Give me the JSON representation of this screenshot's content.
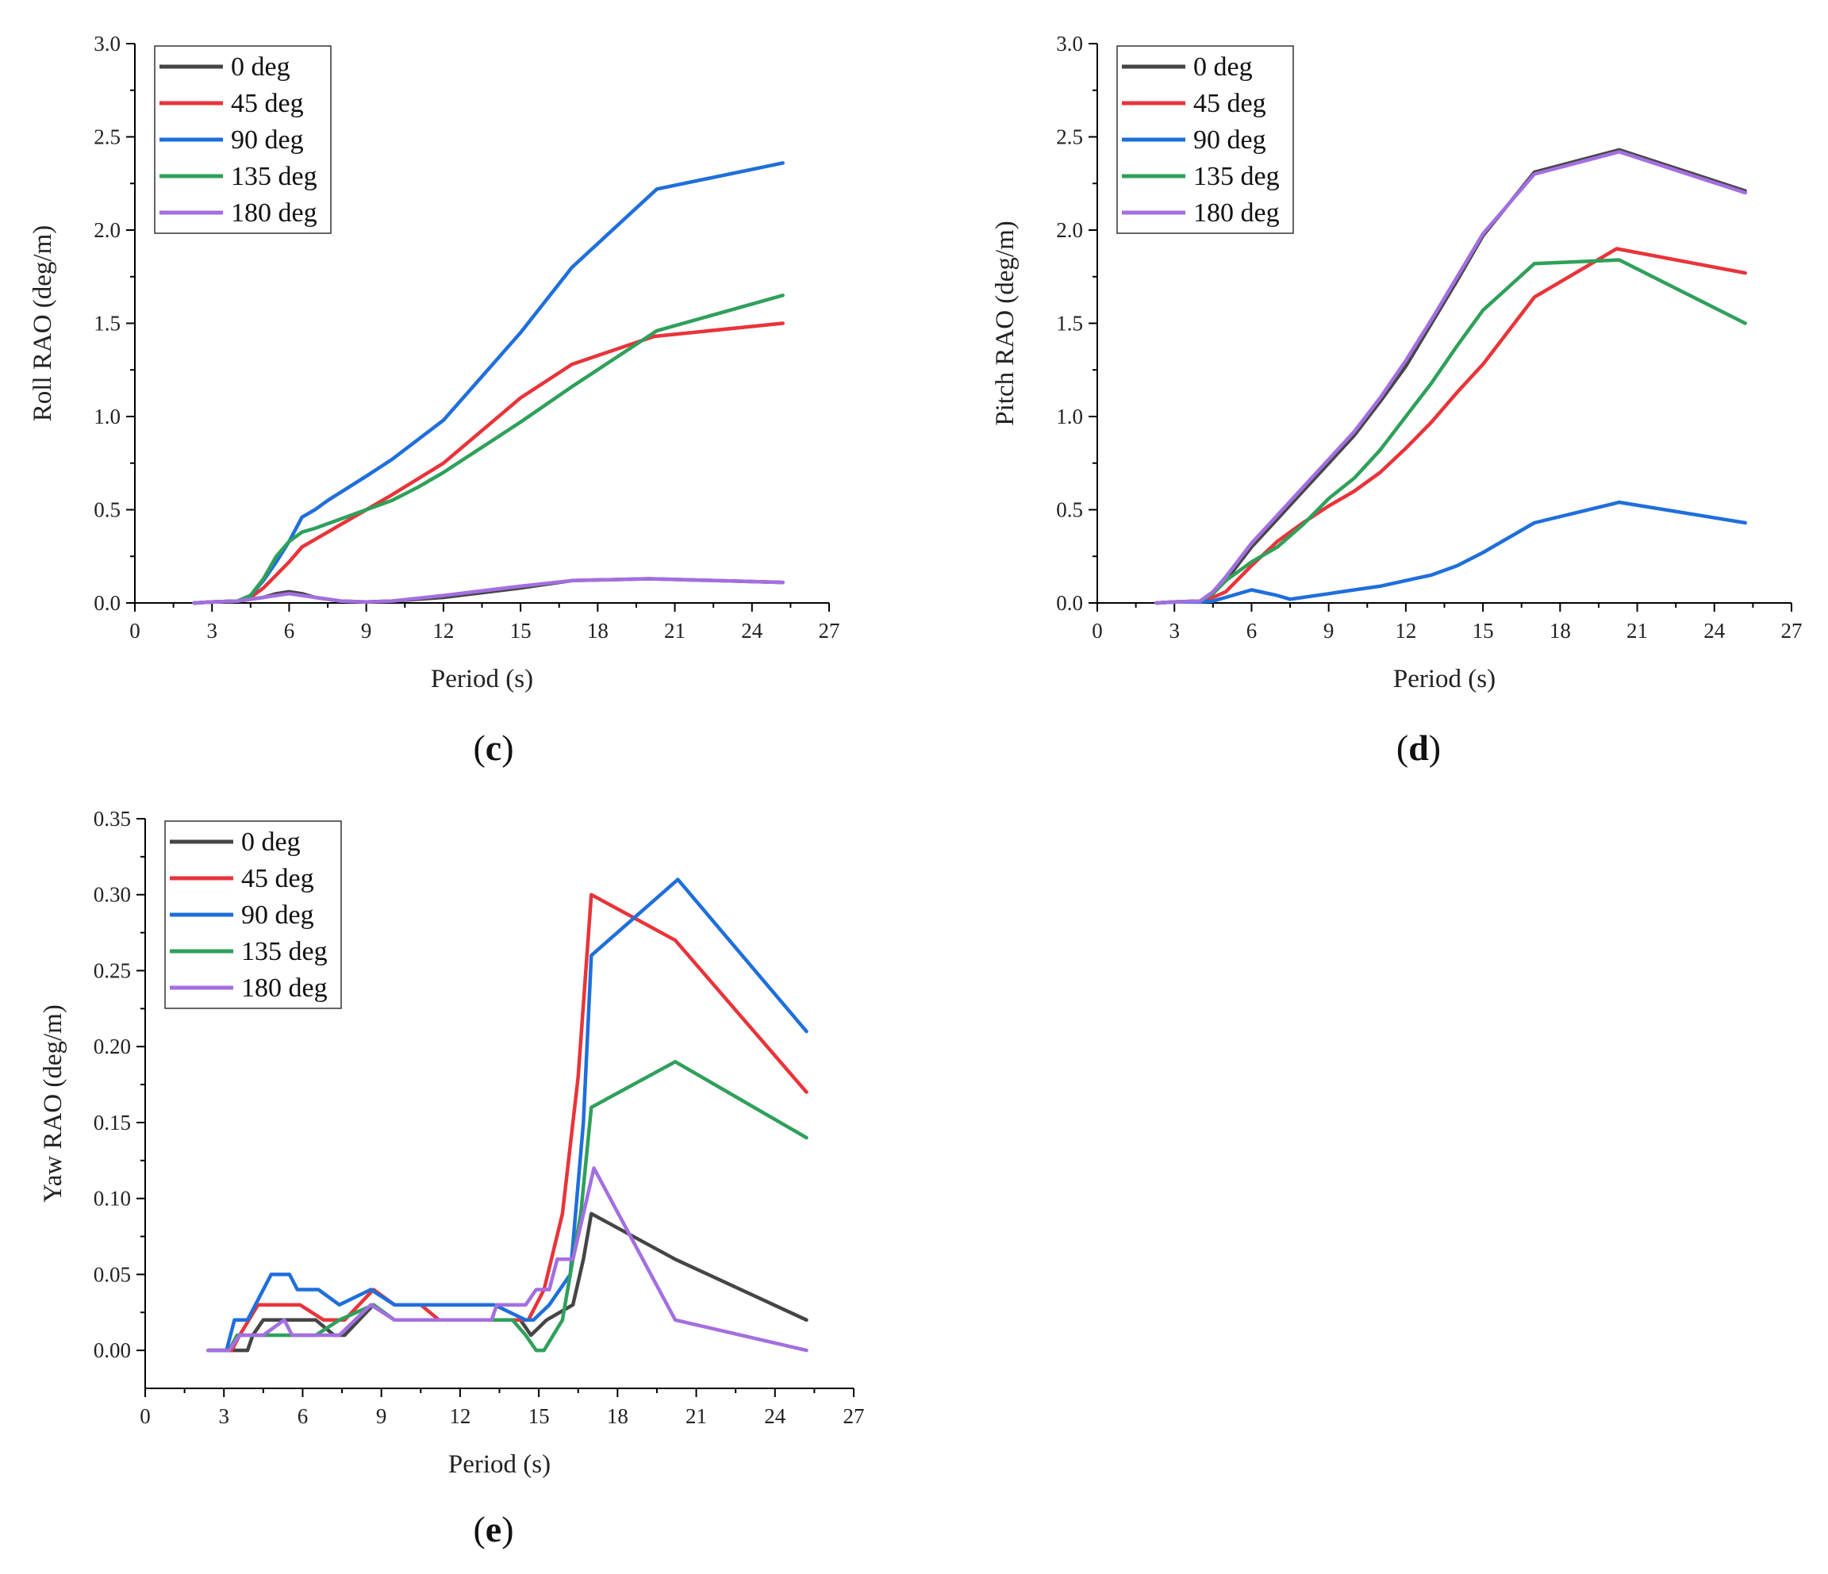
{
  "colors": {
    "0 deg": "#454545",
    "45 deg": "#e8343a",
    "90 deg": "#1f6fdb",
    "135 deg": "#2fa05a",
    "180 deg": "#a36fe0"
  },
  "chart_data": [
    {
      "id": "c",
      "panel_label": "c",
      "type": "line",
      "title": "",
      "xlabel": "Period (s)",
      "ylabel": "Roll RAO (deg/m)",
      "xlim": [
        0,
        27
      ],
      "ylim": [
        0,
        3.0
      ],
      "xticks": [
        "0",
        "3",
        "6",
        "9",
        "12",
        "15",
        "18",
        "21",
        "24",
        "27"
      ],
      "yticks": [
        "0.0",
        "0.5",
        "1.0",
        "1.5",
        "2.0",
        "2.5",
        "3.0"
      ],
      "legend": [
        "0 deg",
        "45 deg",
        "90 deg",
        "135 deg",
        "180 deg"
      ],
      "legend_position": "top-left",
      "series": [
        {
          "name": "0 deg",
          "x": [
            2.3,
            3,
            4,
            4.5,
            5,
            5.5,
            6,
            6.5,
            7,
            8,
            9,
            10,
            12,
            15,
            17,
            20,
            25.2
          ],
          "y": [
            0,
            0.005,
            0.01,
            0.02,
            0.03,
            0.05,
            0.06,
            0.05,
            0.03,
            0.01,
            0.005,
            0.01,
            0.03,
            0.08,
            0.12,
            0.13,
            0.11
          ]
        },
        {
          "name": "45 deg",
          "x": [
            2.3,
            3,
            4,
            4.5,
            5,
            5.5,
            6,
            6.5,
            7,
            7.5,
            9,
            10,
            12,
            15,
            17,
            20.2,
            25.2
          ],
          "y": [
            0,
            0.005,
            0.01,
            0.03,
            0.08,
            0.15,
            0.22,
            0.3,
            0.34,
            0.38,
            0.5,
            0.58,
            0.75,
            1.1,
            1.28,
            1.43,
            1.5
          ]
        },
        {
          "name": "90 deg",
          "x": [
            2.3,
            3,
            4,
            4.5,
            5,
            5.5,
            6,
            6.5,
            7,
            7.5,
            9,
            10,
            12,
            15,
            17,
            20.3,
            25.2
          ],
          "y": [
            0,
            0.005,
            0.01,
            0.04,
            0.12,
            0.22,
            0.33,
            0.46,
            0.5,
            0.55,
            0.68,
            0.77,
            0.98,
            1.45,
            1.8,
            2.22,
            2.36
          ]
        },
        {
          "name": "135 deg",
          "x": [
            2.3,
            3,
            4,
            4.5,
            5,
            5.5,
            6,
            6.5,
            7,
            8,
            9,
            10,
            11,
            12,
            15,
            17,
            20.3,
            25.2
          ],
          "y": [
            0,
            0.005,
            0.01,
            0.04,
            0.13,
            0.25,
            0.33,
            0.38,
            0.4,
            0.45,
            0.5,
            0.55,
            0.62,
            0.7,
            0.97,
            1.16,
            1.46,
            1.65
          ]
        },
        {
          "name": "180 deg",
          "x": [
            2.3,
            3,
            4,
            4.5,
            5,
            5.5,
            6,
            6.5,
            7,
            8,
            9,
            10,
            12,
            15,
            17,
            20,
            25.2
          ],
          "y": [
            0,
            0.005,
            0.01,
            0.02,
            0.03,
            0.04,
            0.05,
            0.04,
            0.03,
            0.01,
            0.005,
            0.01,
            0.04,
            0.09,
            0.12,
            0.13,
            0.11
          ]
        }
      ]
    },
    {
      "id": "d",
      "panel_label": "d",
      "type": "line",
      "title": "",
      "xlabel": "Period (s)",
      "ylabel": "Pitch RAO (deg/m)",
      "xlim": [
        0,
        27
      ],
      "ylim": [
        0,
        3.0
      ],
      "xticks": [
        "0",
        "3",
        "6",
        "9",
        "12",
        "15",
        "18",
        "21",
        "24",
        "27"
      ],
      "yticks": [
        "0.0",
        "0.5",
        "1.0",
        "1.5",
        "2.0",
        "2.5",
        "3.0"
      ],
      "legend": [
        "0 deg",
        "45 deg",
        "90 deg",
        "135 deg",
        "180 deg"
      ],
      "legend_position": "top-left",
      "series": [
        {
          "name": "0 deg",
          "x": [
            2.3,
            3,
            4,
            4.5,
            5,
            6,
            7,
            8,
            9,
            10,
            11,
            12,
            13,
            14,
            15,
            17,
            20.3,
            25.2
          ],
          "y": [
            0,
            0.005,
            0.01,
            0.05,
            0.12,
            0.3,
            0.45,
            0.6,
            0.75,
            0.9,
            1.08,
            1.27,
            1.5,
            1.73,
            1.97,
            2.31,
            2.43,
            2.21
          ]
        },
        {
          "name": "45 deg",
          "x": [
            2.3,
            3,
            4,
            4.5,
            5,
            6,
            7,
            8,
            9,
            10,
            11,
            12,
            13,
            14,
            15,
            17,
            20.2,
            25.2
          ],
          "y": [
            0,
            0.005,
            0.01,
            0.03,
            0.06,
            0.2,
            0.33,
            0.43,
            0.52,
            0.6,
            0.7,
            0.83,
            0.97,
            1.13,
            1.28,
            1.64,
            1.9,
            1.77
          ]
        },
        {
          "name": "90 deg",
          "x": [
            2.3,
            3,
            4,
            4.5,
            5,
            6,
            7,
            7.5,
            8,
            9,
            10,
            11,
            12,
            13,
            14,
            15,
            17,
            20.3,
            25.2
          ],
          "y": [
            0,
            0.005,
            0.005,
            0.01,
            0.03,
            0.07,
            0.04,
            0.02,
            0.03,
            0.05,
            0.07,
            0.09,
            0.12,
            0.15,
            0.2,
            0.27,
            0.43,
            0.54,
            0.43
          ]
        },
        {
          "name": "135 deg",
          "x": [
            2.3,
            3,
            4,
            4.5,
            5,
            6,
            7,
            8,
            9,
            10,
            11,
            12,
            13,
            14,
            15,
            17,
            20.3,
            25.2
          ],
          "y": [
            0,
            0.005,
            0.01,
            0.05,
            0.12,
            0.22,
            0.3,
            0.42,
            0.56,
            0.67,
            0.82,
            1.0,
            1.18,
            1.38,
            1.57,
            1.82,
            1.84,
            1.5
          ]
        },
        {
          "name": "180 deg",
          "x": [
            2.3,
            3,
            4,
            4.5,
            5,
            6,
            7,
            8,
            9,
            10,
            11,
            12,
            13,
            14,
            15,
            17,
            20.3,
            25.2
          ],
          "y": [
            0,
            0.005,
            0.01,
            0.06,
            0.14,
            0.32,
            0.47,
            0.62,
            0.77,
            0.92,
            1.1,
            1.3,
            1.52,
            1.75,
            1.98,
            2.3,
            2.42,
            2.2
          ]
        }
      ]
    },
    {
      "id": "e",
      "panel_label": "e",
      "type": "line",
      "title": "",
      "xlabel": "Period (s)",
      "ylabel": "Yaw RAO (deg/m)",
      "xlim": [
        0,
        27
      ],
      "ylim": [
        -0.025,
        0.35
      ],
      "xticks": [
        "0",
        "3",
        "6",
        "9",
        "12",
        "15",
        "18",
        "21",
        "24",
        "27"
      ],
      "yticks": [
        "0.00",
        "0.05",
        "0.10",
        "0.15",
        "0.20",
        "0.25",
        "0.30",
        "0.35"
      ],
      "ytick_values": [
        0,
        0.05,
        0.1,
        0.15,
        0.2,
        0.25,
        0.3,
        0.35
      ],
      "legend": [
        "0 deg",
        "45 deg",
        "90 deg",
        "135 deg",
        "180 deg"
      ],
      "legend_position": "top-left",
      "series": [
        {
          "name": "0 deg",
          "x": [
            2.4,
            3.5,
            3.9,
            4.1,
            4.5,
            5.5,
            6.5,
            7.2,
            7.6,
            8.7,
            9.5,
            10.5,
            11.5,
            13.5,
            14.3,
            14.7,
            15.3,
            16.3,
            16.7,
            17.0,
            20.2,
            25.2
          ],
          "y": [
            0,
            0,
            0,
            0.01,
            0.02,
            0.02,
            0.02,
            0.01,
            0.01,
            0.03,
            0.02,
            0.02,
            0.02,
            0.02,
            0.02,
            0.01,
            0.02,
            0.03,
            0.06,
            0.09,
            0.06,
            0.02
          ]
        },
        {
          "name": "45 deg",
          "x": [
            2.4,
            3.3,
            3.6,
            4.3,
            5.9,
            6.8,
            7.6,
            8.7,
            9.5,
            10.5,
            11.2,
            13.5,
            14.6,
            15.2,
            15.9,
            16.5,
            17.0,
            20.2,
            25.2
          ],
          "y": [
            0,
            0,
            0.01,
            0.03,
            0.03,
            0.02,
            0.02,
            0.04,
            0.03,
            0.03,
            0.02,
            0.02,
            0.02,
            0.04,
            0.09,
            0.18,
            0.3,
            0.27,
            0.17
          ]
        },
        {
          "name": "90 deg",
          "x": [
            2.4,
            3.1,
            3.4,
            3.9,
            4.2,
            4.8,
            5.5,
            5.8,
            6.6,
            7.4,
            8.6,
            9.5,
            13.3,
            14.5,
            14.8,
            15.4,
            16.2,
            16.7,
            17.0,
            20.3,
            25.2
          ],
          "y": [
            0,
            0,
            0.02,
            0.02,
            0.03,
            0.05,
            0.05,
            0.04,
            0.04,
            0.03,
            0.04,
            0.03,
            0.03,
            0.02,
            0.02,
            0.03,
            0.05,
            0.15,
            0.26,
            0.31,
            0.21
          ]
        },
        {
          "name": "135 deg",
          "x": [
            2.4,
            3.2,
            3.5,
            4.3,
            6.5,
            7.4,
            8.7,
            9.5,
            14.0,
            14.5,
            14.9,
            15.2,
            15.9,
            16.6,
            17.0,
            20.2,
            25.2
          ],
          "y": [
            0,
            0,
            0.01,
            0.01,
            0.01,
            0.02,
            0.03,
            0.02,
            0.02,
            0.01,
            0.0,
            0.0,
            0.02,
            0.09,
            0.16,
            0.19,
            0.14
          ]
        },
        {
          "name": "180 deg",
          "x": [
            2.4,
            3.2,
            3.6,
            4.5,
            5.3,
            5.6,
            7.4,
            8.6,
            9.5,
            13.2,
            13.4,
            14.5,
            14.9,
            15.4,
            15.7,
            16.3,
            17.1,
            20.2,
            25.2
          ],
          "y": [
            0,
            0,
            0.01,
            0.01,
            0.02,
            0.01,
            0.01,
            0.03,
            0.02,
            0.02,
            0.03,
            0.03,
            0.04,
            0.04,
            0.06,
            0.06,
            0.12,
            0.02,
            0.0
          ]
        }
      ]
    }
  ]
}
